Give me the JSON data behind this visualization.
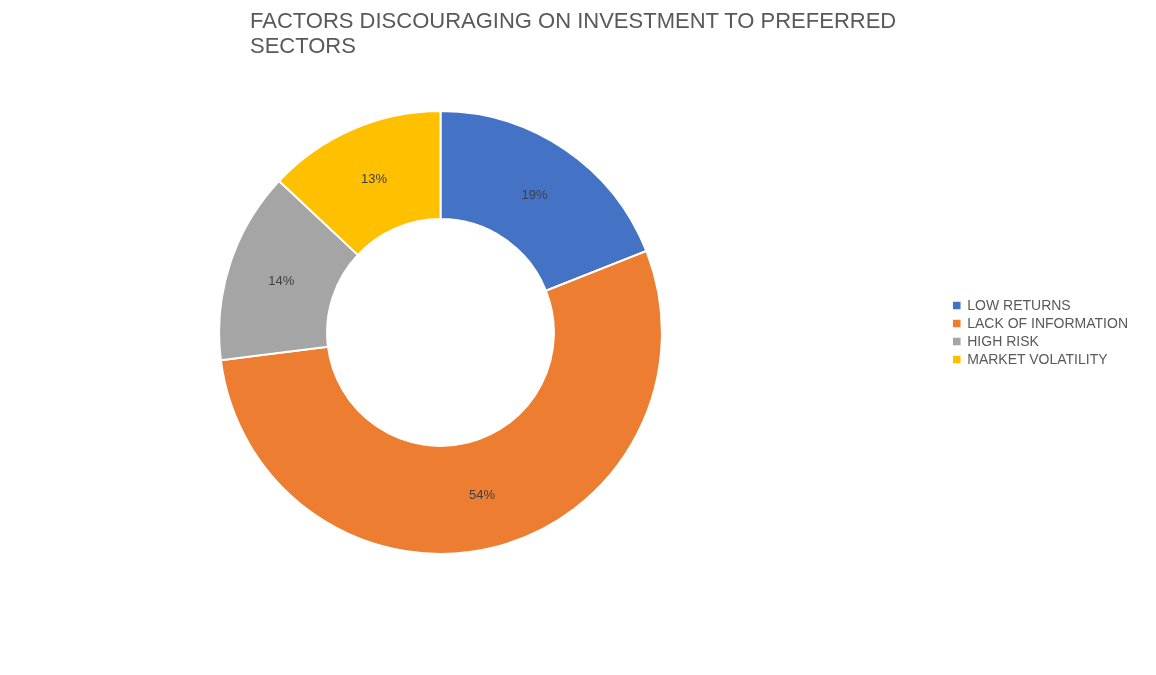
{
  "chart_data": {
    "type": "donut",
    "title": "FACTORS DISCOURAGING ON INVESTMENT TO PREFERRED SECTORS",
    "categories": [
      "LOW RETURNS",
      "LACK OF INFORMATION",
      "HIGH RISK",
      "MARKET VOLATILITY"
    ],
    "values": [
      19,
      54,
      14,
      13
    ],
    "colors": [
      "#4472c4",
      "#ed7d31",
      "#a5a5a5",
      "#ffc000"
    ],
    "value_labels": [
      "19%",
      "54%",
      "14%",
      "13%"
    ],
    "legend": "right"
  }
}
